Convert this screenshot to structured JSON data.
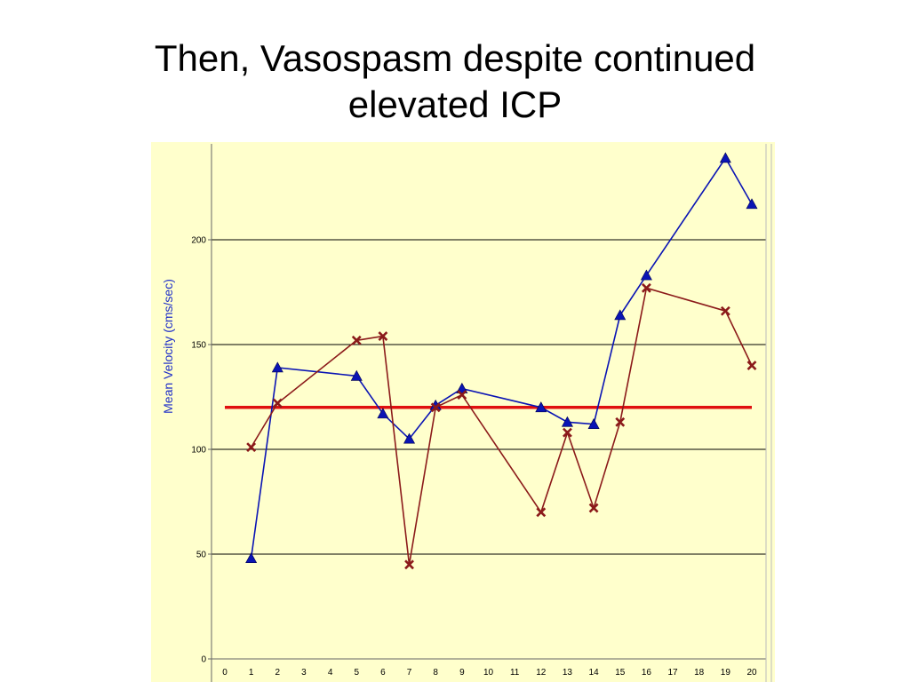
{
  "slide": {
    "title_line1": "Then, Vasospasm despite continued",
    "title_line2": "elevated ICP"
  },
  "colors": {
    "plot_bg": "#ffffcc",
    "series_blue": "#0a14b4",
    "series_red": "#8b1a1a",
    "threshold": "#e01010",
    "grid": "#000000",
    "axis_label": "#1f2fc8"
  },
  "chart_data": {
    "type": "line",
    "xlabel": "",
    "ylabel": "Mean Velocity (cms/sec)",
    "xlim": [
      0,
      20
    ],
    "ylim": [
      0,
      240
    ],
    "x_ticks": [
      0,
      1,
      2,
      3,
      4,
      5,
      6,
      7,
      8,
      9,
      10,
      11,
      12,
      13,
      14,
      15,
      16,
      17,
      18,
      19,
      20
    ],
    "y_ticks": [
      0,
      50,
      100,
      150,
      200
    ],
    "grid": "horizontal",
    "legend": "none",
    "threshold": {
      "value": 120,
      "x_range": [
        0,
        20
      ]
    },
    "series": [
      {
        "marker": "triangle",
        "color": "#0a14b4",
        "points": [
          [
            1,
            48
          ],
          [
            2,
            139
          ],
          [
            5,
            135
          ],
          [
            6,
            117
          ],
          [
            7,
            105
          ],
          [
            8,
            121
          ],
          [
            9,
            129
          ],
          [
            12,
            120
          ],
          [
            13,
            113
          ],
          [
            14,
            112
          ],
          [
            15,
            164
          ],
          [
            16,
            183
          ],
          [
            19,
            239
          ],
          [
            20,
            217
          ]
        ]
      },
      {
        "marker": "x",
        "color": "#8b1a1a",
        "points": [
          [
            1,
            101
          ],
          [
            2,
            122
          ],
          [
            5,
            152
          ],
          [
            6,
            154
          ],
          [
            7,
            45
          ],
          [
            8,
            120
          ],
          [
            9,
            126
          ],
          [
            12,
            70
          ],
          [
            13,
            108
          ],
          [
            14,
            72
          ],
          [
            15,
            113
          ],
          [
            16,
            177
          ],
          [
            19,
            166
          ],
          [
            20,
            140
          ]
        ]
      }
    ]
  }
}
